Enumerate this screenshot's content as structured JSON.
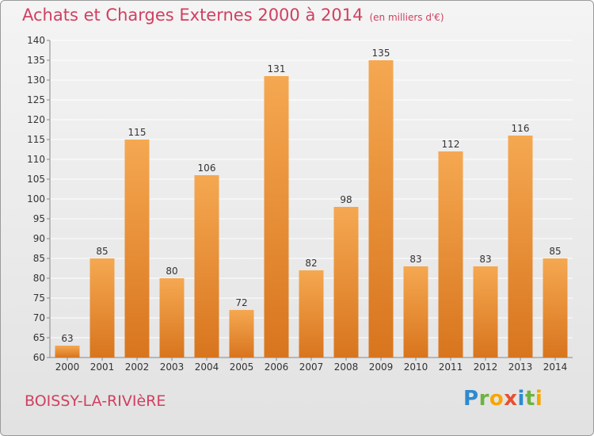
{
  "title": "Achats et Charges Externes 2000 à 2014",
  "unit": "(en milliers d'€)",
  "commune": "BOISSY-LA-RIVIèRE",
  "logo": {
    "letters": [
      "P",
      "r",
      "o",
      "x",
      "i",
      "t",
      "i"
    ],
    "colors": [
      "#2d8ad0",
      "#6db33f",
      "#f7a600",
      "#e94f2e",
      "#2d8ad0",
      "#6db33f",
      "#f7a600"
    ]
  },
  "colors": {
    "title": "#d04060",
    "bar_light": "#f5a851",
    "bar_dark": "#d8751e",
    "grid": "#ffffff"
  },
  "chart_data": {
    "type": "bar",
    "categories": [
      "2000",
      "2001",
      "2002",
      "2003",
      "2004",
      "2005",
      "2006",
      "2007",
      "2008",
      "2009",
      "2010",
      "2011",
      "2012",
      "2013",
      "2014"
    ],
    "values": [
      63,
      85,
      115,
      80,
      106,
      72,
      131,
      82,
      98,
      135,
      83,
      112,
      83,
      116,
      85
    ],
    "ylim": [
      60,
      140
    ],
    "yticks": [
      60,
      65,
      70,
      75,
      80,
      85,
      90,
      95,
      100,
      105,
      110,
      115,
      120,
      125,
      130,
      135,
      140
    ],
    "grid": true,
    "data_labels": true
  }
}
